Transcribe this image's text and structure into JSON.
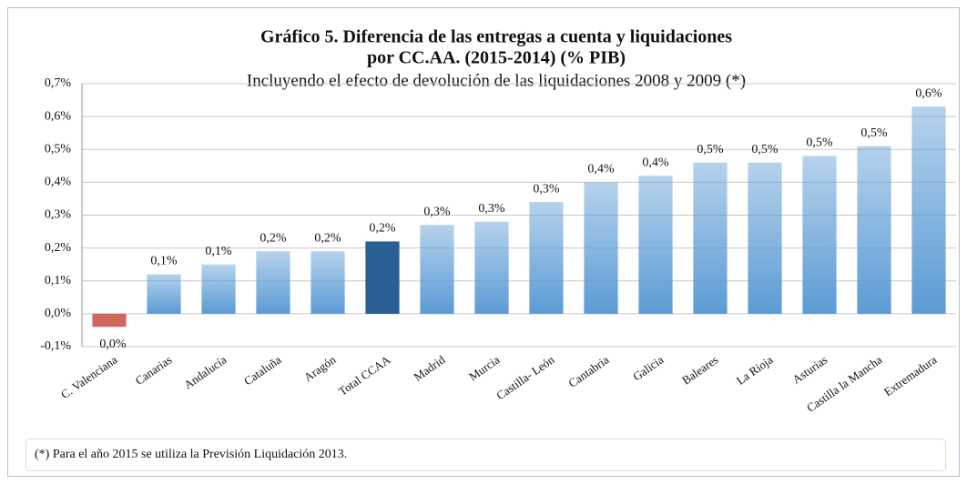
{
  "chart_data": {
    "type": "bar",
    "title": [
      "Gráfico 5. Diferencia de las entregas a cuenta y liquidaciones",
      "por CC.AA. (2015-2014) (% PIB)"
    ],
    "subtitle": "Incluyendo el efecto de devolución de las liquidaciones 2008 y 2009 (*)",
    "categories": [
      "C. Valenciana",
      "Canarias",
      "Andalucía",
      "Cataluña",
      "Aragón",
      "Total CCAA",
      "Madrid",
      "Murcia",
      "Castilla- León",
      "Cantabria",
      "Galicia",
      "Baleares",
      "La Rioja",
      "Asturias",
      "Castilla la Mancha",
      "Extremadura"
    ],
    "values": [
      -0.04,
      0.12,
      0.15,
      0.19,
      0.19,
      0.22,
      0.27,
      0.28,
      0.34,
      0.4,
      0.42,
      0.46,
      0.46,
      0.48,
      0.51,
      0.63
    ],
    "value_labels": [
      "0,0%",
      "0,1%",
      "0,1%",
      "0,2%",
      "0,2%",
      "0,2%",
      "0,3%",
      "0,3%",
      "0,3%",
      "0,4%",
      "0,4%",
      "0,5%",
      "0,5%",
      "0,5%",
      "0,5%",
      "0,6%"
    ],
    "colors": [
      "#d0675f",
      "#5b9bd5",
      "#5b9bd5",
      "#5b9bd5",
      "#5b9bd5",
      "#285f95",
      "#5b9bd5",
      "#5b9bd5",
      "#5b9bd5",
      "#5b9bd5",
      "#5b9bd5",
      "#5b9bd5",
      "#5b9bd5",
      "#5b9bd5",
      "#5b9bd5",
      "#5b9bd5"
    ],
    "ylim": [
      -0.1,
      0.7
    ],
    "yticks": [
      {
        "value": -0.1,
        "label": "-0,1%"
      },
      {
        "value": 0,
        "label": "0,0%"
      },
      {
        "value": 0.1,
        "label": "0,1%"
      },
      {
        "value": 0.2,
        "label": "0,2%"
      },
      {
        "value": 0.3,
        "label": "0,3%"
      },
      {
        "value": 0.4,
        "label": "0,4%"
      },
      {
        "value": 0.5,
        "label": "0,5%"
      },
      {
        "value": 0.6,
        "label": "0,6%"
      },
      {
        "value": 0.7,
        "label": "0,7%"
      }
    ],
    "grid": true,
    "footnote": "(*) Para el año 2015 se utiliza la Previsión Liquidación 2013."
  }
}
